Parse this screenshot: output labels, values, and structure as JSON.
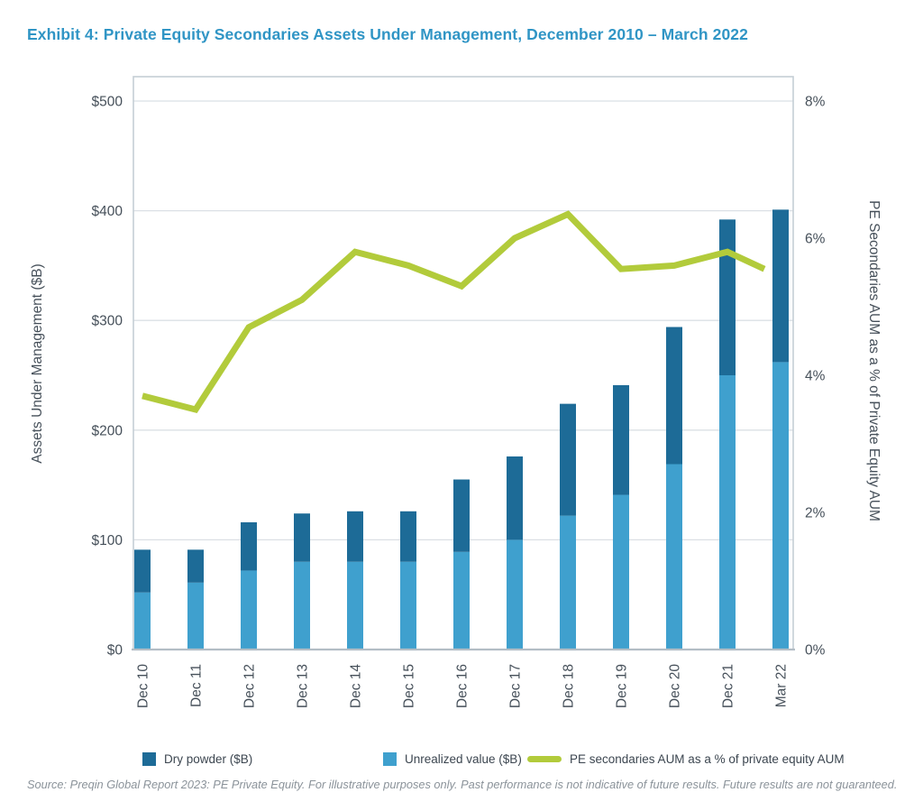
{
  "page": {
    "title": "Exhibit 4: Private Equity Secondaries Assets Under Management, December 2010 – March 2022",
    "source": "Source: Preqin Global Report 2023: PE Private Equity. For illustrative purposes only. Past performance is not indicative of future results. Future results are not guaranteed."
  },
  "colors": {
    "dry_powder": "#1d6b97",
    "unrealized_value": "#3fa0ce",
    "line": "#b2cb3b",
    "title_blue": "#3095c5",
    "axis_text": "#46505a",
    "gridline": "#dbe0e5",
    "frame": "#c5ced5",
    "baseline": "#b3bdc5"
  },
  "chart_data": {
    "type": "stacked-bar-with-line",
    "title": "Exhibit 4: Private Equity Secondaries Assets Under Management, December 2010 – March 2022",
    "categories": [
      "Dec 10",
      "Dec 11",
      "Dec 12",
      "Dec 13",
      "Dec 14",
      "Dec 15",
      "Dec 16",
      "Dec 17",
      "Dec 18",
      "Dec 19",
      "Dec 20",
      "Dec 21",
      "Mar 22"
    ],
    "series": [
      {
        "name": "Dry powder ($B)",
        "type": "bar",
        "stack_order": "top",
        "color": "#1d6b97",
        "values": [
          39,
          30,
          44,
          44,
          46,
          46,
          66,
          76,
          102,
          100,
          125,
          142,
          139
        ]
      },
      {
        "name": "Unrealized value ($B)",
        "type": "bar",
        "stack_order": "bottom",
        "color": "#3fa0ce",
        "values": [
          52,
          61,
          72,
          80,
          80,
          80,
          89,
          100,
          122,
          141,
          169,
          250,
          262
        ]
      },
      {
        "name": "PE secondaries AUM as a % of private equity AUM",
        "type": "line",
        "axis": "right",
        "color": "#b2cb3b",
        "values": [
          3.7,
          3.5,
          4.7,
          5.1,
          5.8,
          5.6,
          5.3,
          6.0,
          6.35,
          5.55,
          5.6,
          5.8,
          5.55
        ]
      }
    ],
    "stacked_totals": [
      91,
      91,
      116,
      124,
      126,
      126,
      155,
      176,
      224,
      241,
      294,
      392,
      401
    ],
    "left_axis": {
      "label": "Assets Under Management ($B)",
      "range": [
        0,
        500
      ],
      "tick_step": 100,
      "tick_labels": [
        "$0",
        "$100",
        "$200",
        "$300",
        "$400",
        "$500"
      ]
    },
    "right_axis": {
      "label": "PE Secondaries AUM as a % of Private Equity AUM",
      "range": [
        0,
        8
      ],
      "tick_step": 2,
      "tick_labels": [
        "0%",
        "2%",
        "4%",
        "6%",
        "8%"
      ]
    },
    "grid": true,
    "legend_position": "bottom"
  }
}
